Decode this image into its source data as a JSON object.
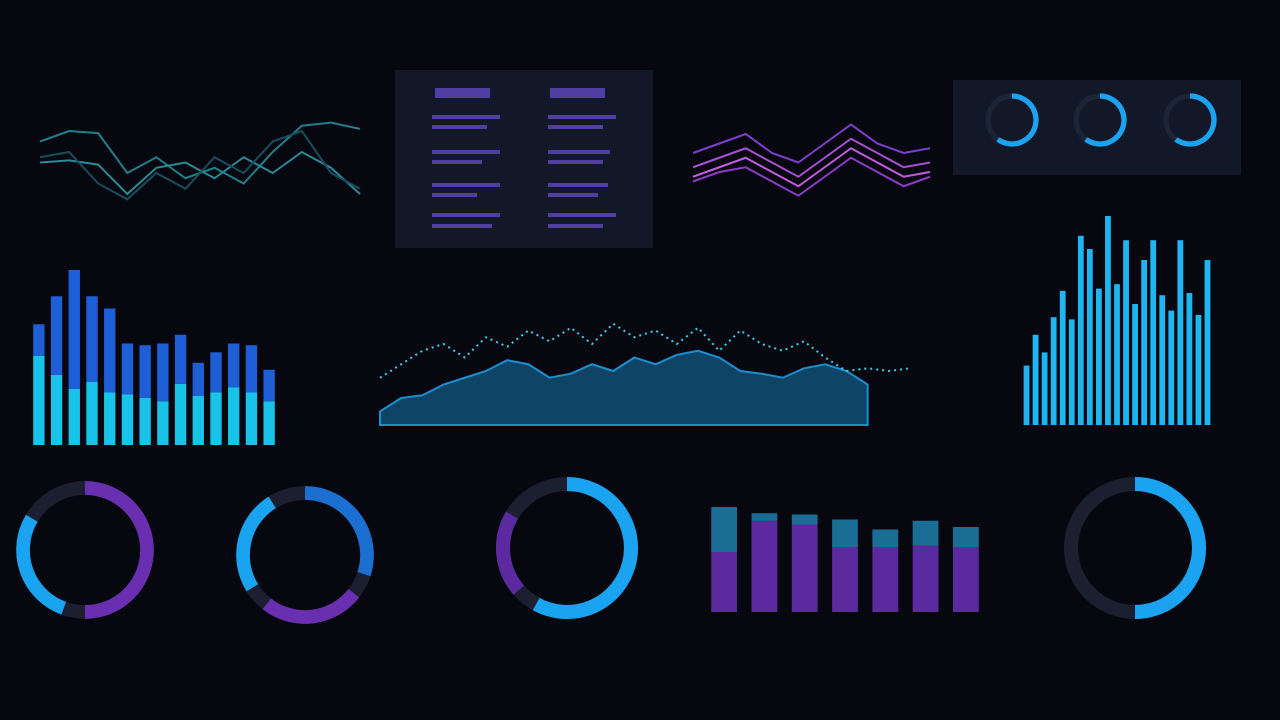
{
  "chart_data": [
    {
      "type": "line",
      "ylim": [
        0,
        100
      ],
      "series": [
        {
          "color": "#1f7f8c",
          "values": [
            70,
            80,
            78,
            40,
            55,
            35,
            45,
            30,
            60,
            85,
            88,
            82
          ]
        },
        {
          "color": "#2a8a96",
          "values": [
            50,
            52,
            48,
            20,
            45,
            50,
            35,
            55,
            40,
            60,
            45,
            20
          ]
        },
        {
          "color": "#174d5c",
          "values": [
            55,
            60,
            30,
            15,
            40,
            25,
            55,
            40,
            70,
            80,
            40,
            25
          ]
        }
      ]
    },
    {
      "type": "line",
      "ylim": [
        0,
        100
      ],
      "series": [
        {
          "color": "#7b3fd0",
          "values": [
            60,
            70,
            80,
            60,
            50,
            70,
            90,
            70,
            60,
            65
          ]
        },
        {
          "color": "#a84fd6",
          "values": [
            45,
            55,
            65,
            50,
            35,
            55,
            75,
            60,
            45,
            50
          ]
        },
        {
          "color": "#c25be0",
          "values": [
            35,
            45,
            55,
            40,
            25,
            45,
            65,
            50,
            35,
            40
          ]
        },
        {
          "color": "#8a3cc8",
          "values": [
            30,
            40,
            45,
            30,
            15,
            35,
            55,
            40,
            25,
            35
          ]
        }
      ]
    },
    {
      "type": "bar",
      "stacked": true,
      "ylim": [
        0,
        100
      ],
      "series": [
        {
          "color": "#19c2e8",
          "values": [
            51,
            40,
            32,
            36,
            30,
            29,
            27,
            25,
            35,
            28,
            30,
            33,
            30,
            25
          ]
        },
        {
          "color": "#1e5fd8",
          "values": [
            18,
            45,
            68,
            49,
            48,
            29,
            30,
            33,
            28,
            19,
            23,
            25,
            27,
            18
          ]
        }
      ]
    },
    {
      "type": "area",
      "ylim": [
        0,
        100
      ],
      "series": [
        {
          "kind": "area",
          "color": "#1a8fd0",
          "values": [
            10,
            20,
            22,
            30,
            35,
            40,
            48,
            45,
            35,
            38,
            45,
            40,
            50,
            45,
            52,
            55,
            50,
            40,
            38,
            35,
            42,
            45,
            40,
            30,
            null,
            null
          ]
        },
        {
          "kind": "dotted",
          "color": "#3ad0f0",
          "values": [
            35,
            45,
            55,
            60,
            50,
            65,
            58,
            70,
            62,
            72,
            60,
            75,
            65,
            70,
            60,
            72,
            55,
            70,
            60,
            55,
            62,
            50,
            40,
            42,
            40,
            42
          ]
        }
      ]
    },
    {
      "type": "bar",
      "ylim": [
        0,
        100
      ],
      "series": [
        {
          "color": "#1fb5f0",
          "values": [
            27,
            41,
            33,
            49,
            61,
            48,
            86,
            80,
            62,
            95,
            64,
            84,
            55,
            75,
            84,
            59,
            52,
            84,
            60,
            50,
            75
          ]
        }
      ]
    },
    {
      "type": "donut",
      "track": "#1c1f30",
      "series": [
        {
          "colors": [
            "#6a2fb0",
            "#1aa3f0"
          ],
          "values": [
            50,
            28
          ]
        },
        {
          "colors": [
            "#1a6fd0",
            "#6a2fb0",
            "#1aa3f0"
          ],
          "values": [
            30,
            25,
            25
          ]
        },
        {
          "colors": [
            "#1aa3f0",
            "#5b2a9e"
          ],
          "values": [
            58,
            20
          ]
        },
        {
          "colors": [
            "#1aa3f0"
          ],
          "values": [
            50
          ]
        }
      ]
    },
    {
      "type": "donut",
      "track": "#1c2538",
      "series": [
        {
          "colors": [
            "#1aa3f0"
          ],
          "values": [
            60
          ]
        },
        {
          "colors": [
            "#1aa3f0"
          ],
          "values": [
            60
          ]
        },
        {
          "colors": [
            "#1aa3f0"
          ],
          "values": [
            60
          ]
        }
      ]
    },
    {
      "type": "bar",
      "stacked": true,
      "ylim": [
        0,
        100
      ],
      "series": [
        {
          "color": "#5b2a9e",
          "values": [
            48,
            73,
            70,
            52,
            52,
            53,
            52
          ]
        },
        {
          "color": "#1a6e96",
          "values": [
            36,
            6,
            8,
            22,
            14,
            20,
            16
          ]
        }
      ]
    }
  ]
}
